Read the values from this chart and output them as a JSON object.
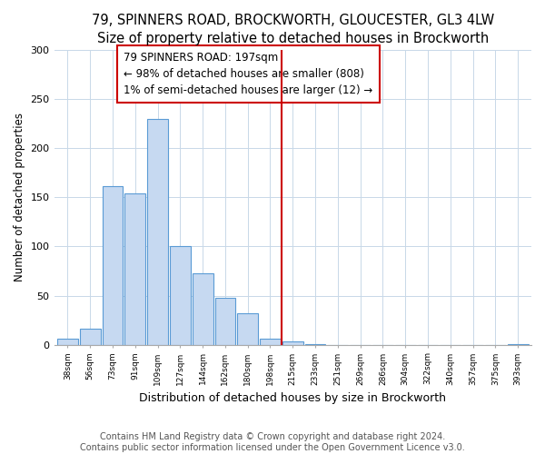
{
  "title": "79, SPINNERS ROAD, BROCKWORTH, GLOUCESTER, GL3 4LW",
  "subtitle": "Size of property relative to detached houses in Brockworth",
  "xlabel": "Distribution of detached houses by size in Brockworth",
  "ylabel": "Number of detached properties",
  "bin_labels": [
    "38sqm",
    "56sqm",
    "73sqm",
    "91sqm",
    "109sqm",
    "127sqm",
    "144sqm",
    "162sqm",
    "180sqm",
    "198sqm",
    "215sqm",
    "233sqm",
    "251sqm",
    "269sqm",
    "286sqm",
    "304sqm",
    "322sqm",
    "340sqm",
    "357sqm",
    "375sqm",
    "393sqm"
  ],
  "bar_values": [
    6,
    16,
    161,
    154,
    230,
    100,
    73,
    48,
    32,
    6,
    3,
    1,
    0,
    0,
    0,
    0,
    0,
    0,
    0,
    0,
    1
  ],
  "bar_color": "#c6d9f1",
  "bar_edge_color": "#5a9bd5",
  "red_line_color": "#cc0000",
  "red_line_x": 9.5,
  "annotation_text": "79 SPINNERS ROAD: 197sqm\n← 98% of detached houses are smaller (808)\n1% of semi-detached houses are larger (12) →",
  "annotation_box_color": "#ffffff",
  "annotation_box_edge": "#cc0000",
  "ylim": [
    0,
    300
  ],
  "yticks": [
    0,
    50,
    100,
    150,
    200,
    250,
    300
  ],
  "footer_text": "Contains HM Land Registry data © Crown copyright and database right 2024.\nContains public sector information licensed under the Open Government Licence v3.0.",
  "title_fontsize": 10.5,
  "xlabel_fontsize": 9,
  "ylabel_fontsize": 8.5,
  "footer_fontsize": 7,
  "annotation_fontsize": 8.5
}
